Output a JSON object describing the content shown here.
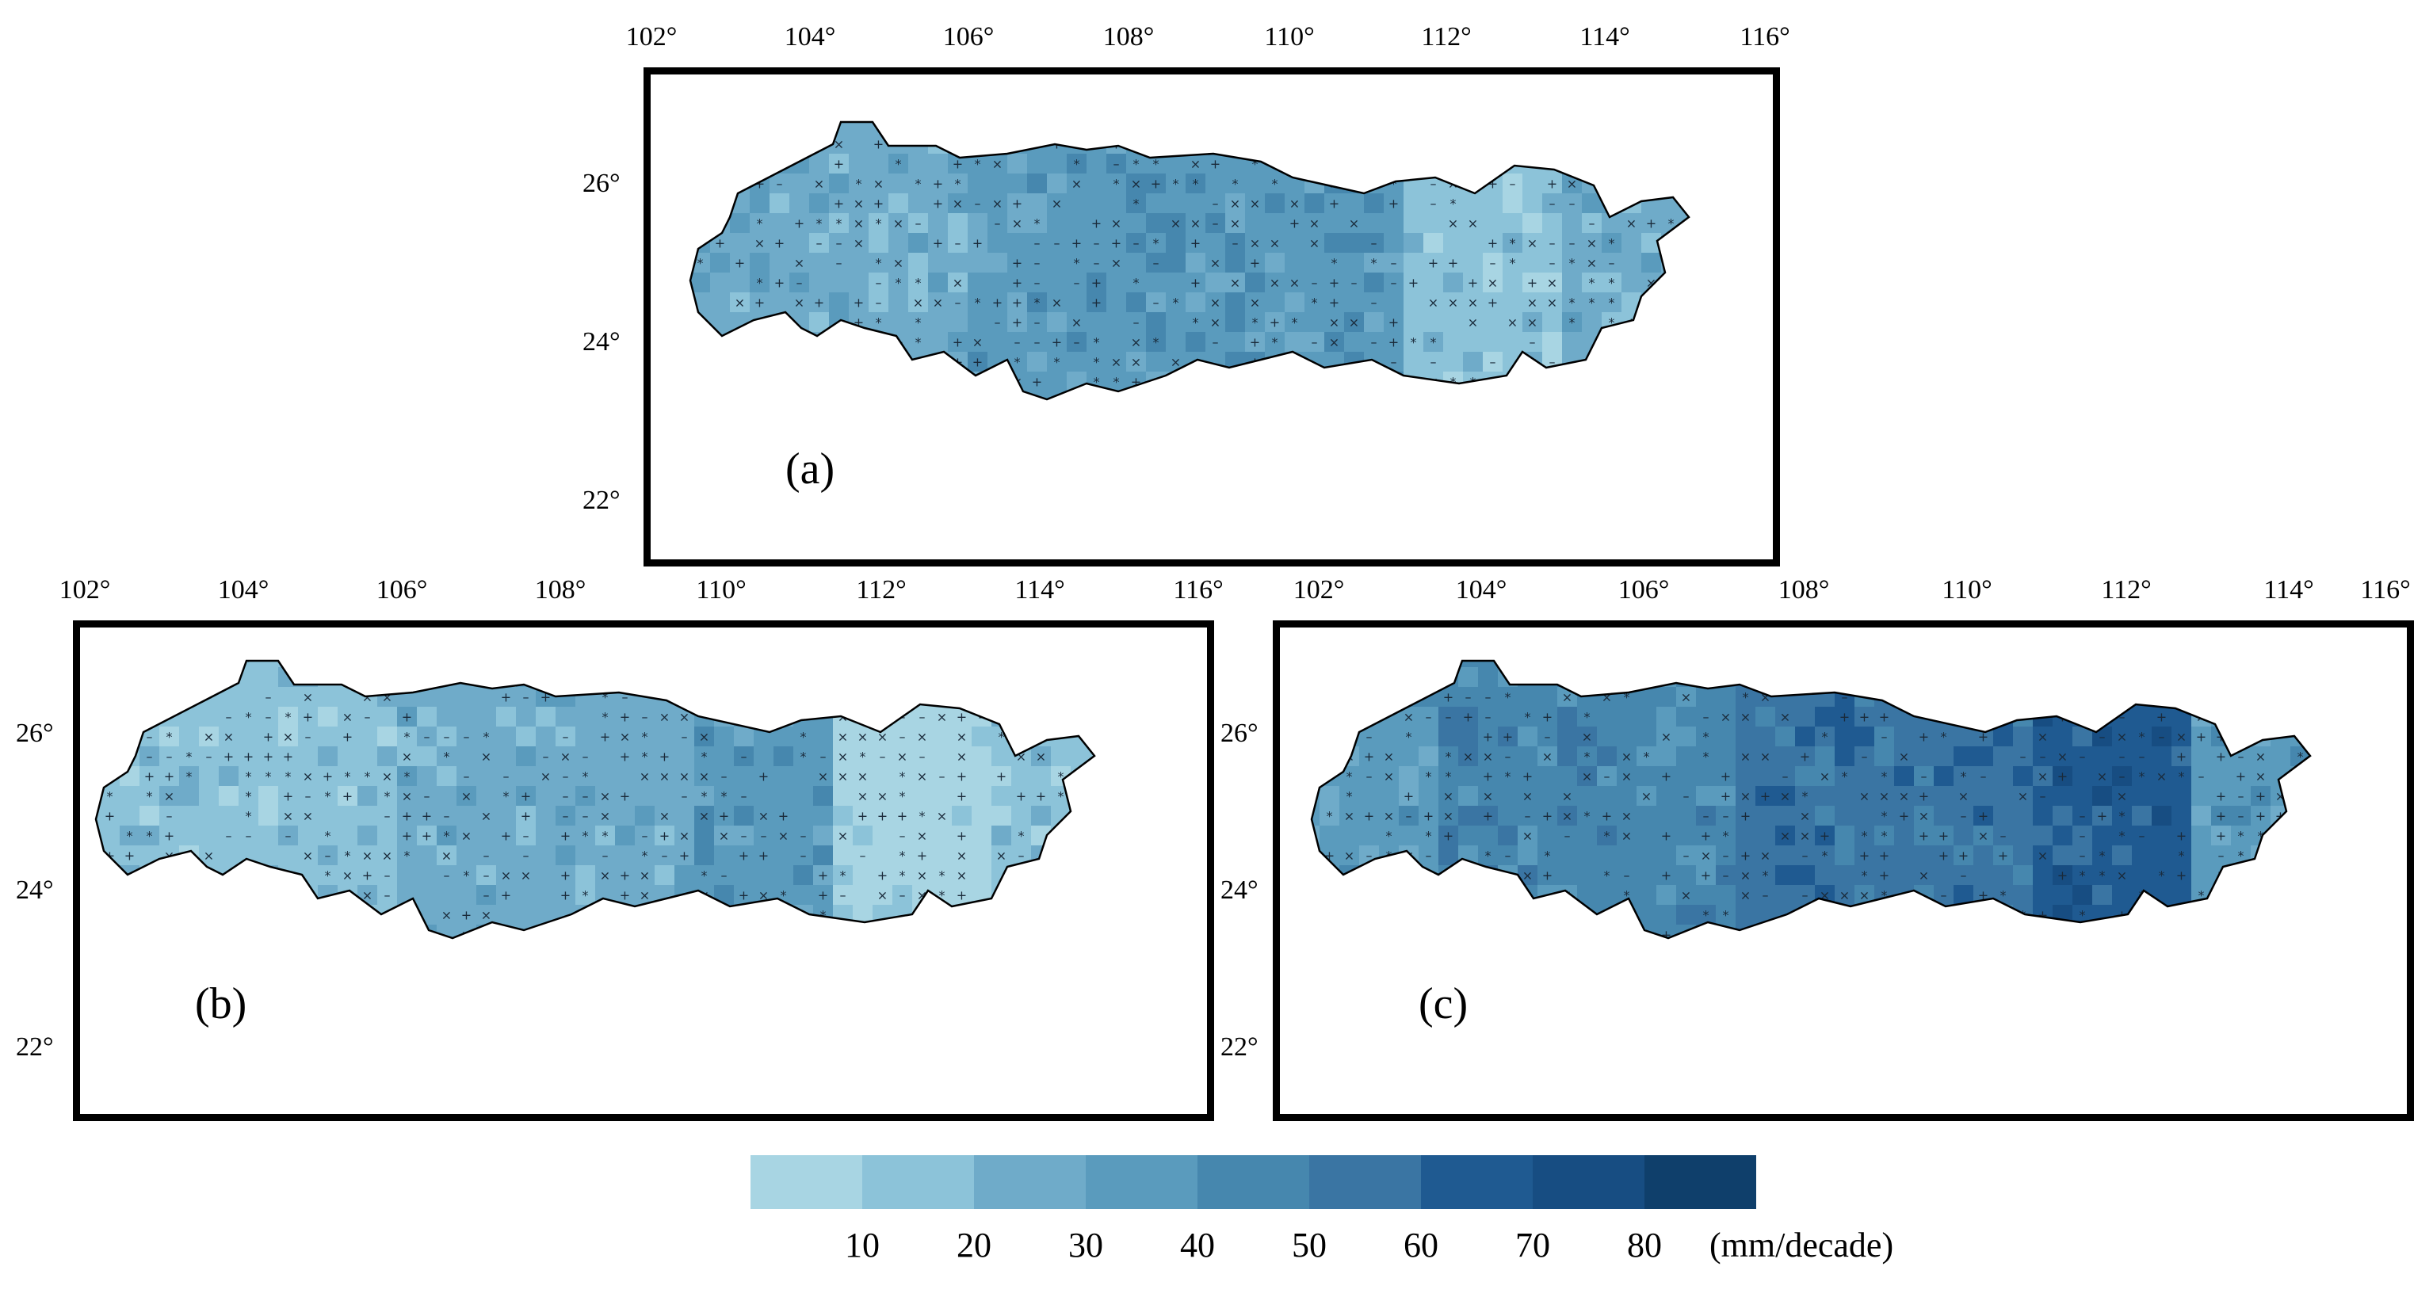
{
  "lon_ticks": [
    "102°",
    "104°",
    "106°",
    "108°",
    "110°",
    "112°",
    "114°",
    "116°"
  ],
  "lat_ticks": [
    "26°",
    "24°",
    "22°"
  ],
  "panels": [
    {
      "id": "a",
      "label": "(a)",
      "dominant_class": "30-40"
    },
    {
      "id": "b",
      "label": "(b)",
      "dominant_class": "20-30"
    },
    {
      "id": "c",
      "label": "(c)",
      "dominant_class": "40-60"
    }
  ],
  "legend": {
    "colors": [
      "#a8d5e3",
      "#8cc3d9",
      "#6fabc9",
      "#5a9bbd",
      "#4687ae",
      "#3a75a3",
      "#1f5a91",
      "#174d82",
      "#0f3f6b"
    ],
    "tick_labels": [
      "10",
      "20",
      "30",
      "40",
      "50",
      "60",
      "70",
      "80"
    ],
    "unit": "(mm/decade)"
  }
}
